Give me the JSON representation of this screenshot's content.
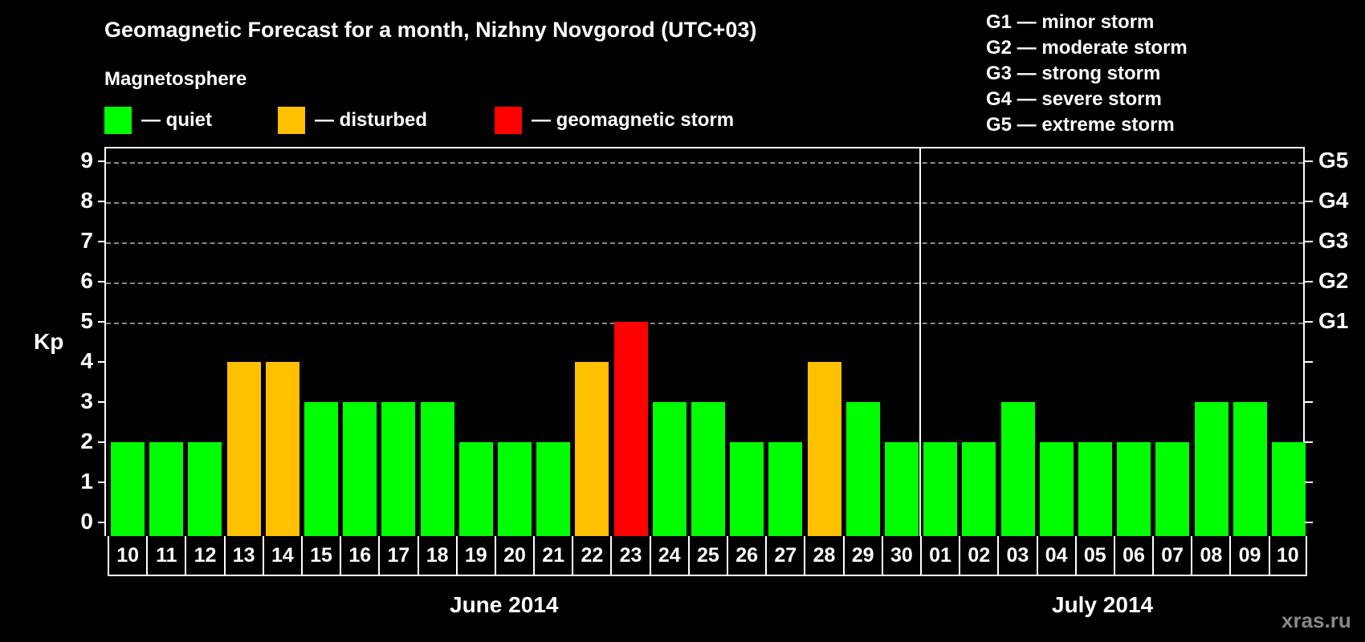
{
  "title": "Geomagnetic Forecast for a month, Nizhny Novgorod (UTC+03)",
  "subtitle": "Magnetosphere",
  "legend": [
    {
      "label": "— quiet",
      "color": "#00ff00"
    },
    {
      "label": "— disturbed",
      "color": "#ffc000"
    },
    {
      "label": "— geomagnetic storm",
      "color": "#ff0000"
    }
  ],
  "g_scale": [
    "G1 — minor storm",
    "G2 — moderate storm",
    "G3 — strong storm",
    "G4 — severe storm",
    "G5 — extreme storm"
  ],
  "y_axis_label": "Kp",
  "y_ticks": [
    "9",
    "8",
    "7",
    "6",
    "5",
    "4",
    "3",
    "2",
    "1",
    "0"
  ],
  "g_ticks": [
    "G5",
    "G4",
    "G3",
    "G2",
    "G1"
  ],
  "months": {
    "june": "June 2014",
    "july": "July 2014"
  },
  "watermark": "xras.ru",
  "chart_data": {
    "type": "bar",
    "title": "Geomagnetic Forecast for a month, Nizhny Novgorod (UTC+03)",
    "subtitle": "Magnetosphere",
    "xlabel": "June 2014 / July 2014",
    "ylabel": "Kp",
    "ylim": [
      0,
      9
    ],
    "grid": true,
    "categories": [
      "10",
      "11",
      "12",
      "13",
      "14",
      "15",
      "16",
      "17",
      "18",
      "19",
      "20",
      "21",
      "22",
      "23",
      "24",
      "25",
      "26",
      "27",
      "28",
      "29",
      "30",
      "01",
      "02",
      "03",
      "04",
      "05",
      "06",
      "07",
      "08",
      "09",
      "10"
    ],
    "values": [
      2,
      2,
      2,
      4,
      4,
      3,
      3,
      3,
      3,
      2,
      2,
      2,
      4,
      5,
      3,
      3,
      2,
      2,
      4,
      3,
      2,
      2,
      2,
      3,
      2,
      2,
      2,
      2,
      3,
      3,
      2
    ],
    "status": [
      "quiet",
      "quiet",
      "quiet",
      "disturbed",
      "disturbed",
      "quiet",
      "quiet",
      "quiet",
      "quiet",
      "quiet",
      "quiet",
      "quiet",
      "disturbed",
      "storm",
      "quiet",
      "quiet",
      "quiet",
      "quiet",
      "disturbed",
      "quiet",
      "quiet",
      "quiet",
      "quiet",
      "quiet",
      "quiet",
      "quiet",
      "quiet",
      "quiet",
      "quiet",
      "quiet",
      "quiet"
    ],
    "colors": {
      "quiet": "#00ff00",
      "disturbed": "#ffc000",
      "storm": "#ff0000"
    },
    "legend": [
      "quiet",
      "disturbed",
      "geomagnetic storm"
    ],
    "secondary_axis": {
      "G1": 5,
      "G2": 6,
      "G3": 7,
      "G4": 8,
      "G5": 9
    }
  }
}
